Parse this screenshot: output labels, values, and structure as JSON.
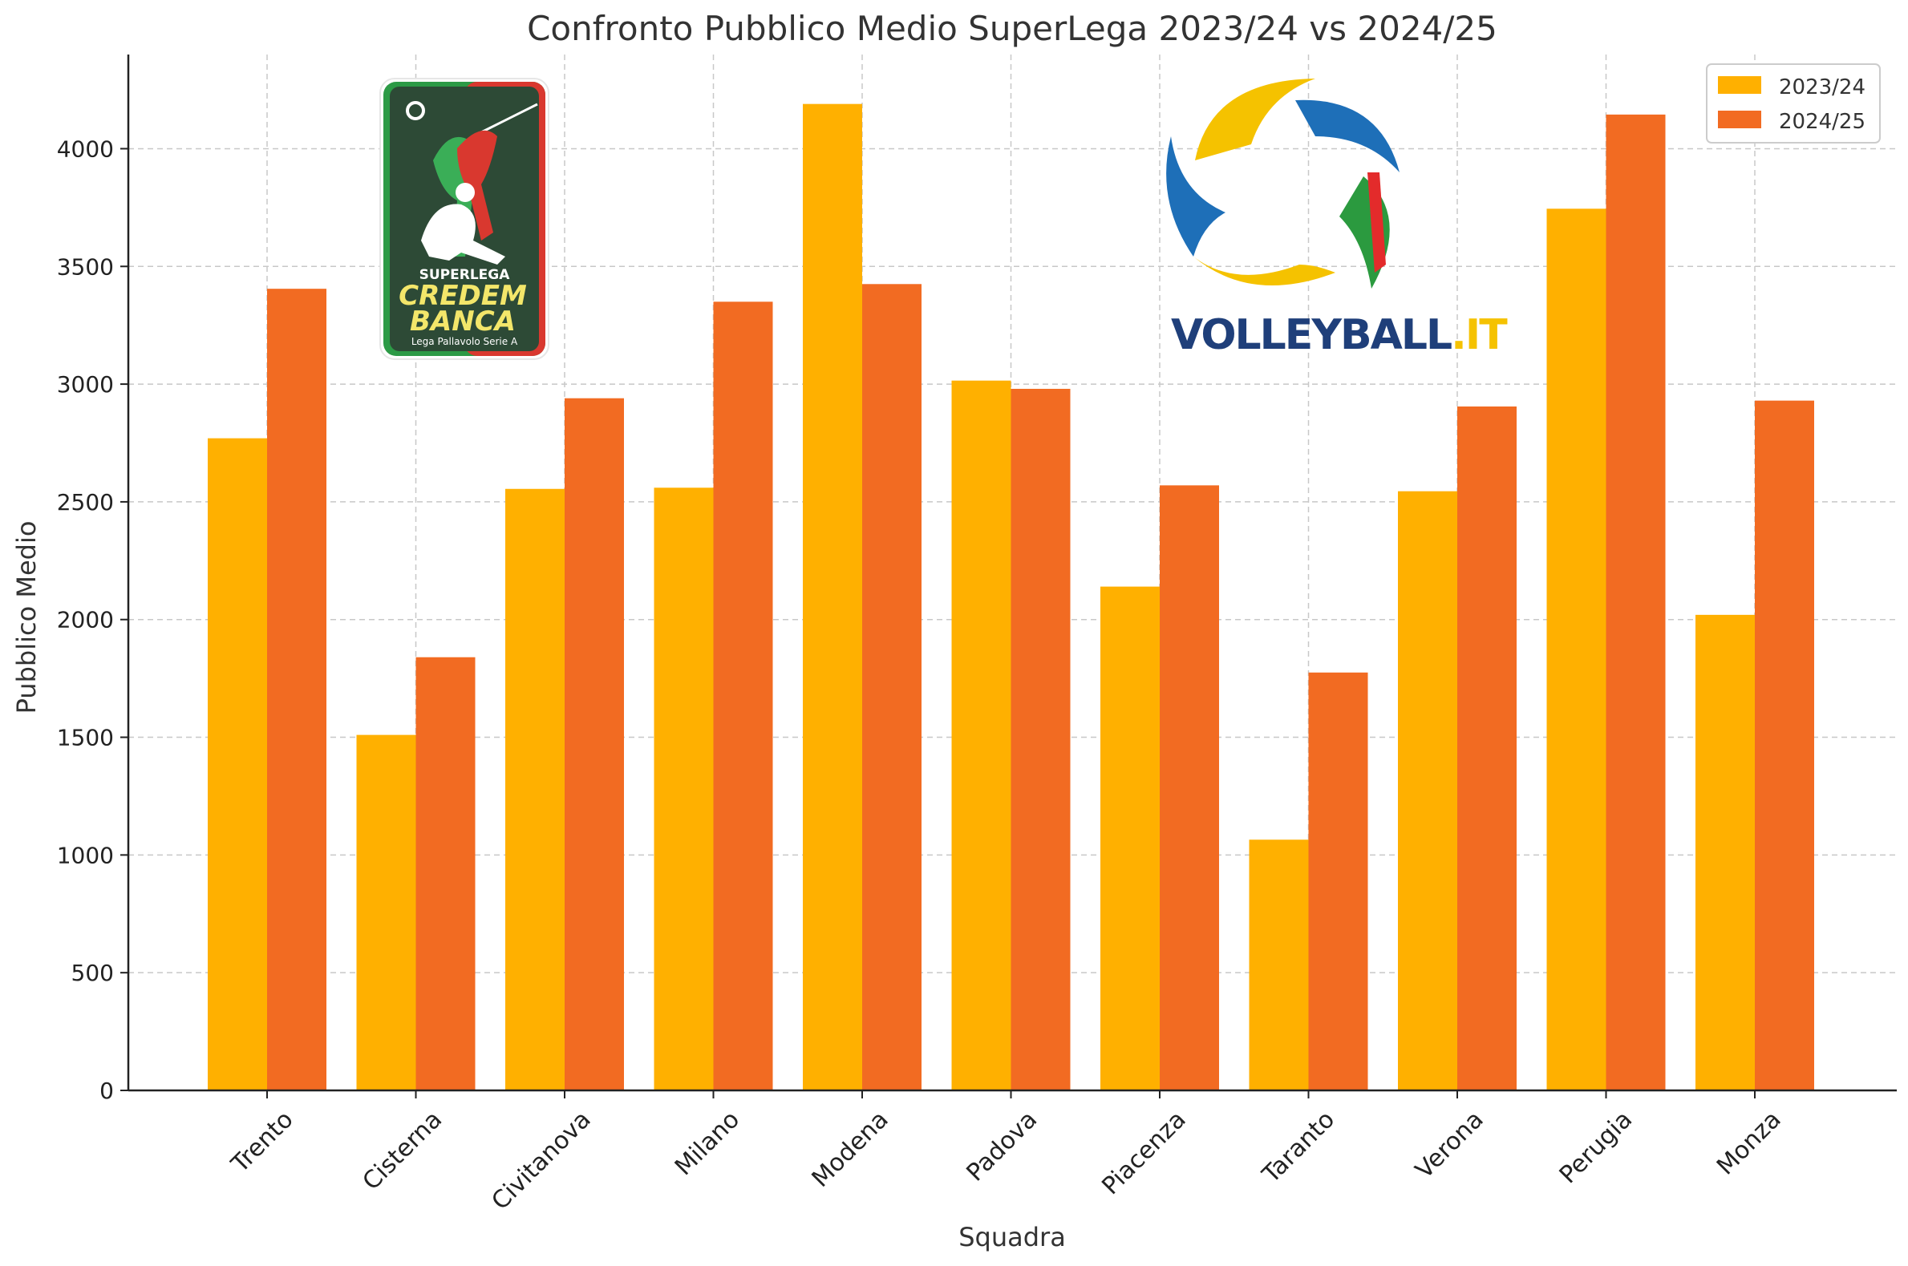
{
  "chart_data": {
    "type": "bar",
    "title": "Confronto Pubblico Medio SuperLega 2023/24 vs 2024/25",
    "xlabel": "Squadra",
    "ylabel": "Pubblico Medio",
    "categories": [
      "Trento",
      "Cisterna",
      "Civitanova",
      "Milano",
      "Modena",
      "Padova",
      "Piacenza",
      "Taranto",
      "Verona",
      "Perugia",
      "Monza"
    ],
    "series": [
      {
        "name": "2023/24",
        "color": "#FFB000",
        "values": [
          2770,
          1510,
          2555,
          2560,
          4190,
          3015,
          2140,
          1065,
          2545,
          3745,
          2020
        ]
      },
      {
        "name": "2024/25",
        "color": "#F26B22",
        "values": [
          3405,
          1840,
          2940,
          3350,
          3425,
          2980,
          2570,
          1775,
          2905,
          4145,
          2930
        ]
      }
    ],
    "ylim": [
      0,
      4400
    ],
    "yticks": [
      0,
      500,
      1000,
      1500,
      2000,
      2500,
      3000,
      3500,
      4000
    ],
    "grid": true,
    "legend_position": "top-right"
  },
  "logos": {
    "superlega": {
      "line1": "SUPERLEGA",
      "line2": "CREDEM",
      "line3": "BANCA",
      "line4": "Lega Pallavolo Serie A"
    },
    "volleyball": {
      "text_main": "VOLLEYBALL",
      "text_suffix": ".IT"
    }
  }
}
